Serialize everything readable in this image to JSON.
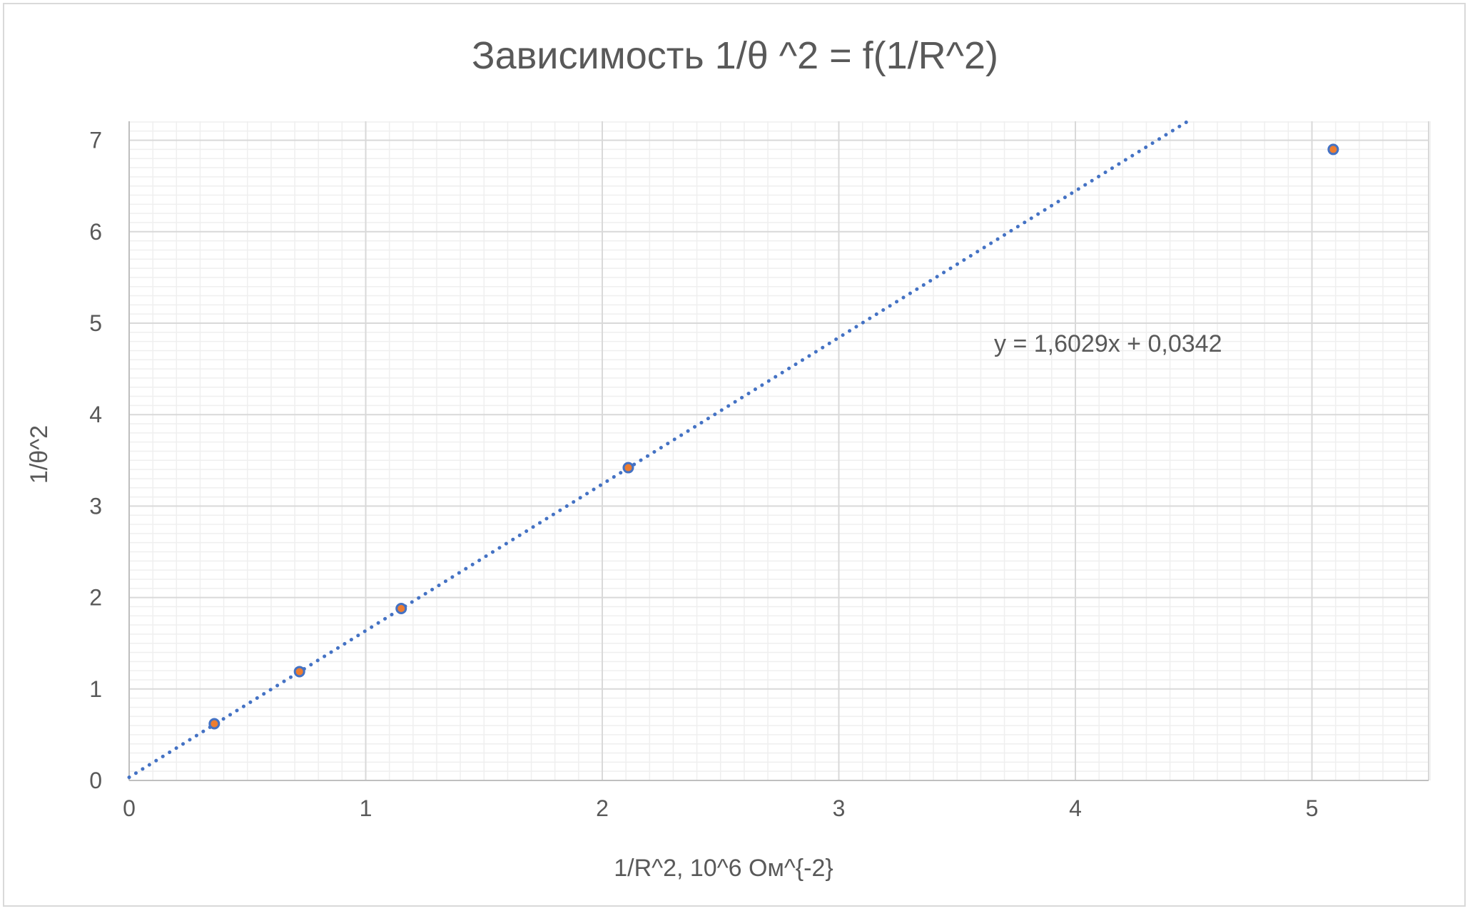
{
  "chart_data": {
    "type": "scatter",
    "title": "Зависимость 1/θ ^2 = f(1/R^2)",
    "xlabel": "1/R^2, 10^6 Ом^{-2}",
    "ylabel": "1/θ^2",
    "xlim": [
      0,
      5.5
    ],
    "ylim": [
      0,
      7.2
    ],
    "x_ticks": [
      0,
      1,
      2,
      3,
      4,
      5
    ],
    "y_ticks": [
      0,
      1,
      2,
      3,
      4,
      5,
      6,
      7
    ],
    "x_minor_step": 0.1,
    "y_minor_step": 0.1,
    "grid": true,
    "series": [
      {
        "points": [
          {
            "x": 0.36,
            "y": 0.62
          },
          {
            "x": 0.72,
            "y": 1.19
          },
          {
            "x": 1.15,
            "y": 1.88
          },
          {
            "x": 2.11,
            "y": 3.42
          },
          {
            "x": 5.09,
            "y": 6.9
          }
        ],
        "marker_fill": "#ED7D31",
        "marker_edge": "#4472C4"
      }
    ],
    "trendline": {
      "type": "linear",
      "slope": 1.6029,
      "intercept": 0.0342,
      "style": "dotted",
      "color": "#4472C4",
      "equation_label": "y = 1,6029x + 0,0342"
    }
  }
}
